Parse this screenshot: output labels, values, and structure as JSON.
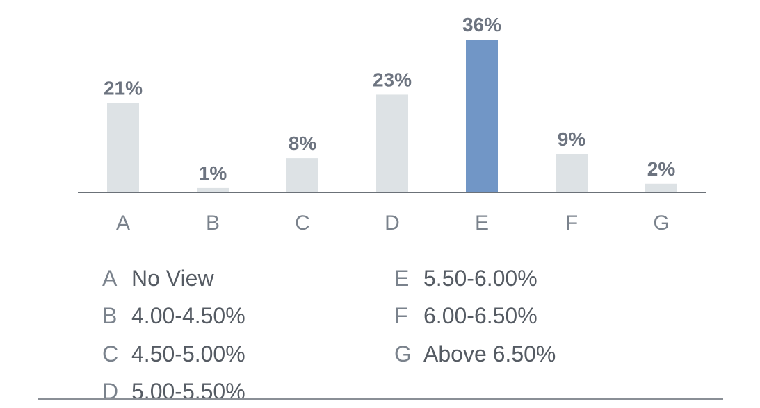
{
  "chart_data": {
    "type": "bar",
    "categories": [
      "A",
      "B",
      "C",
      "D",
      "E",
      "F",
      "G"
    ],
    "values": [
      21,
      1,
      8,
      23,
      36,
      9,
      2
    ],
    "value_labels": [
      "21%",
      "1%",
      "8%",
      "23%",
      "36%",
      "9%",
      "2%"
    ],
    "highlight_index": 4,
    "ylim": [
      0,
      36
    ],
    "grid": false,
    "colors": {
      "bar": "#dde2e5",
      "highlight": "#7196c6",
      "axis": "#6b7178",
      "label": "#6d7480"
    }
  },
  "legend": {
    "items": [
      {
        "code": "A",
        "text": "No View"
      },
      {
        "code": "B",
        "text": "4.00-4.50%"
      },
      {
        "code": "C",
        "text": "4.50-5.00%"
      },
      {
        "code": "D",
        "text": "5.00-5.50%"
      },
      {
        "code": "E",
        "text": "5.50-6.00%"
      },
      {
        "code": "F",
        "text": "6.00-6.50%"
      },
      {
        "code": "G",
        "text": "Above 6.50%"
      }
    ]
  }
}
